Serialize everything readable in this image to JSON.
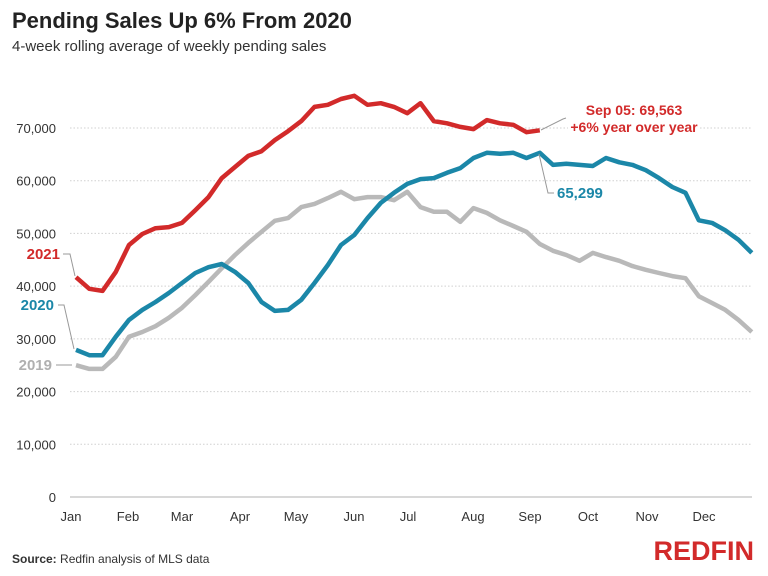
{
  "chart_data": {
    "type": "line",
    "title": "Pending Sales Up 6% From 2020",
    "subtitle": "4-week rolling average of weekly pending sales",
    "xlabel": "",
    "ylabel": "",
    "x_tick_labels": [
      "Jan",
      "Feb",
      "Mar",
      "Apr",
      "May",
      "Jun",
      "Jul",
      "Aug",
      "Sep",
      "Oct",
      "Nov",
      "Dec"
    ],
    "y_ticks": [
      0,
      10000,
      20000,
      30000,
      40000,
      50000,
      60000,
      70000
    ],
    "y_tick_labels": [
      "0",
      "10,000",
      "20,000",
      "30,000",
      "40,000",
      "50,000",
      "60,000",
      "70,000"
    ],
    "ylim": [
      0,
      70000
    ],
    "grid": "horizontal dotted",
    "series": [
      {
        "name": "2019",
        "color": "#b9b9b9",
        "values": [
          25000,
          24300,
          24300,
          26600,
          30400,
          31300,
          32400,
          34000,
          35900,
          38300,
          40800,
          43400,
          45900,
          48200,
          50300,
          52400,
          52900,
          55000,
          55600,
          56700,
          57900,
          56500,
          56900,
          56900,
          56300,
          57900,
          55000,
          54100,
          54100,
          52200,
          54800,
          53900,
          52500,
          51400,
          50300,
          48000,
          46700,
          45900,
          44800,
          46300,
          45500,
          44800,
          43800,
          43100,
          42500,
          41900,
          41500,
          38100,
          36800,
          35500,
          33600,
          31300
        ]
      },
      {
        "name": "2020",
        "color": "#1b87a8",
        "values": [
          27900,
          26900,
          26900,
          30400,
          33600,
          35500,
          37000,
          38700,
          40600,
          42500,
          43600,
          44200,
          42700,
          40600,
          37000,
          35300,
          35500,
          37400,
          40600,
          44000,
          47800,
          49700,
          52900,
          55800,
          57700,
          59400,
          60300,
          60500,
          61500,
          62400,
          64300,
          65300,
          65100,
          65300,
          64300,
          65299,
          63000,
          63200,
          63000,
          62800,
          64300,
          63500,
          63000,
          62000,
          60500,
          58800,
          57700,
          52500,
          52000,
          50600,
          48800,
          46300
        ]
      },
      {
        "name": "2021",
        "color": "#d22a2a",
        "values": [
          41700,
          39500,
          39100,
          42700,
          47800,
          49900,
          51000,
          51200,
          52000,
          54400,
          56900,
          60500,
          62600,
          64700,
          65600,
          67700,
          69400,
          71300,
          74000,
          74400,
          75500,
          76100,
          74400,
          74700,
          74000,
          72800,
          74700,
          71300,
          70900,
          70200,
          69800,
          71500,
          70900,
          70600,
          69200,
          69563
        ]
      }
    ],
    "annotations": {
      "latest_2021_line1": "Sep 05: 69,563",
      "latest_2021_line2": "+6% year over year",
      "latest_2020": "65,299"
    }
  },
  "footer": {
    "source_label": "Source:",
    "source_text": " Redfin analysis of MLS data",
    "logo": "REDFIN"
  }
}
